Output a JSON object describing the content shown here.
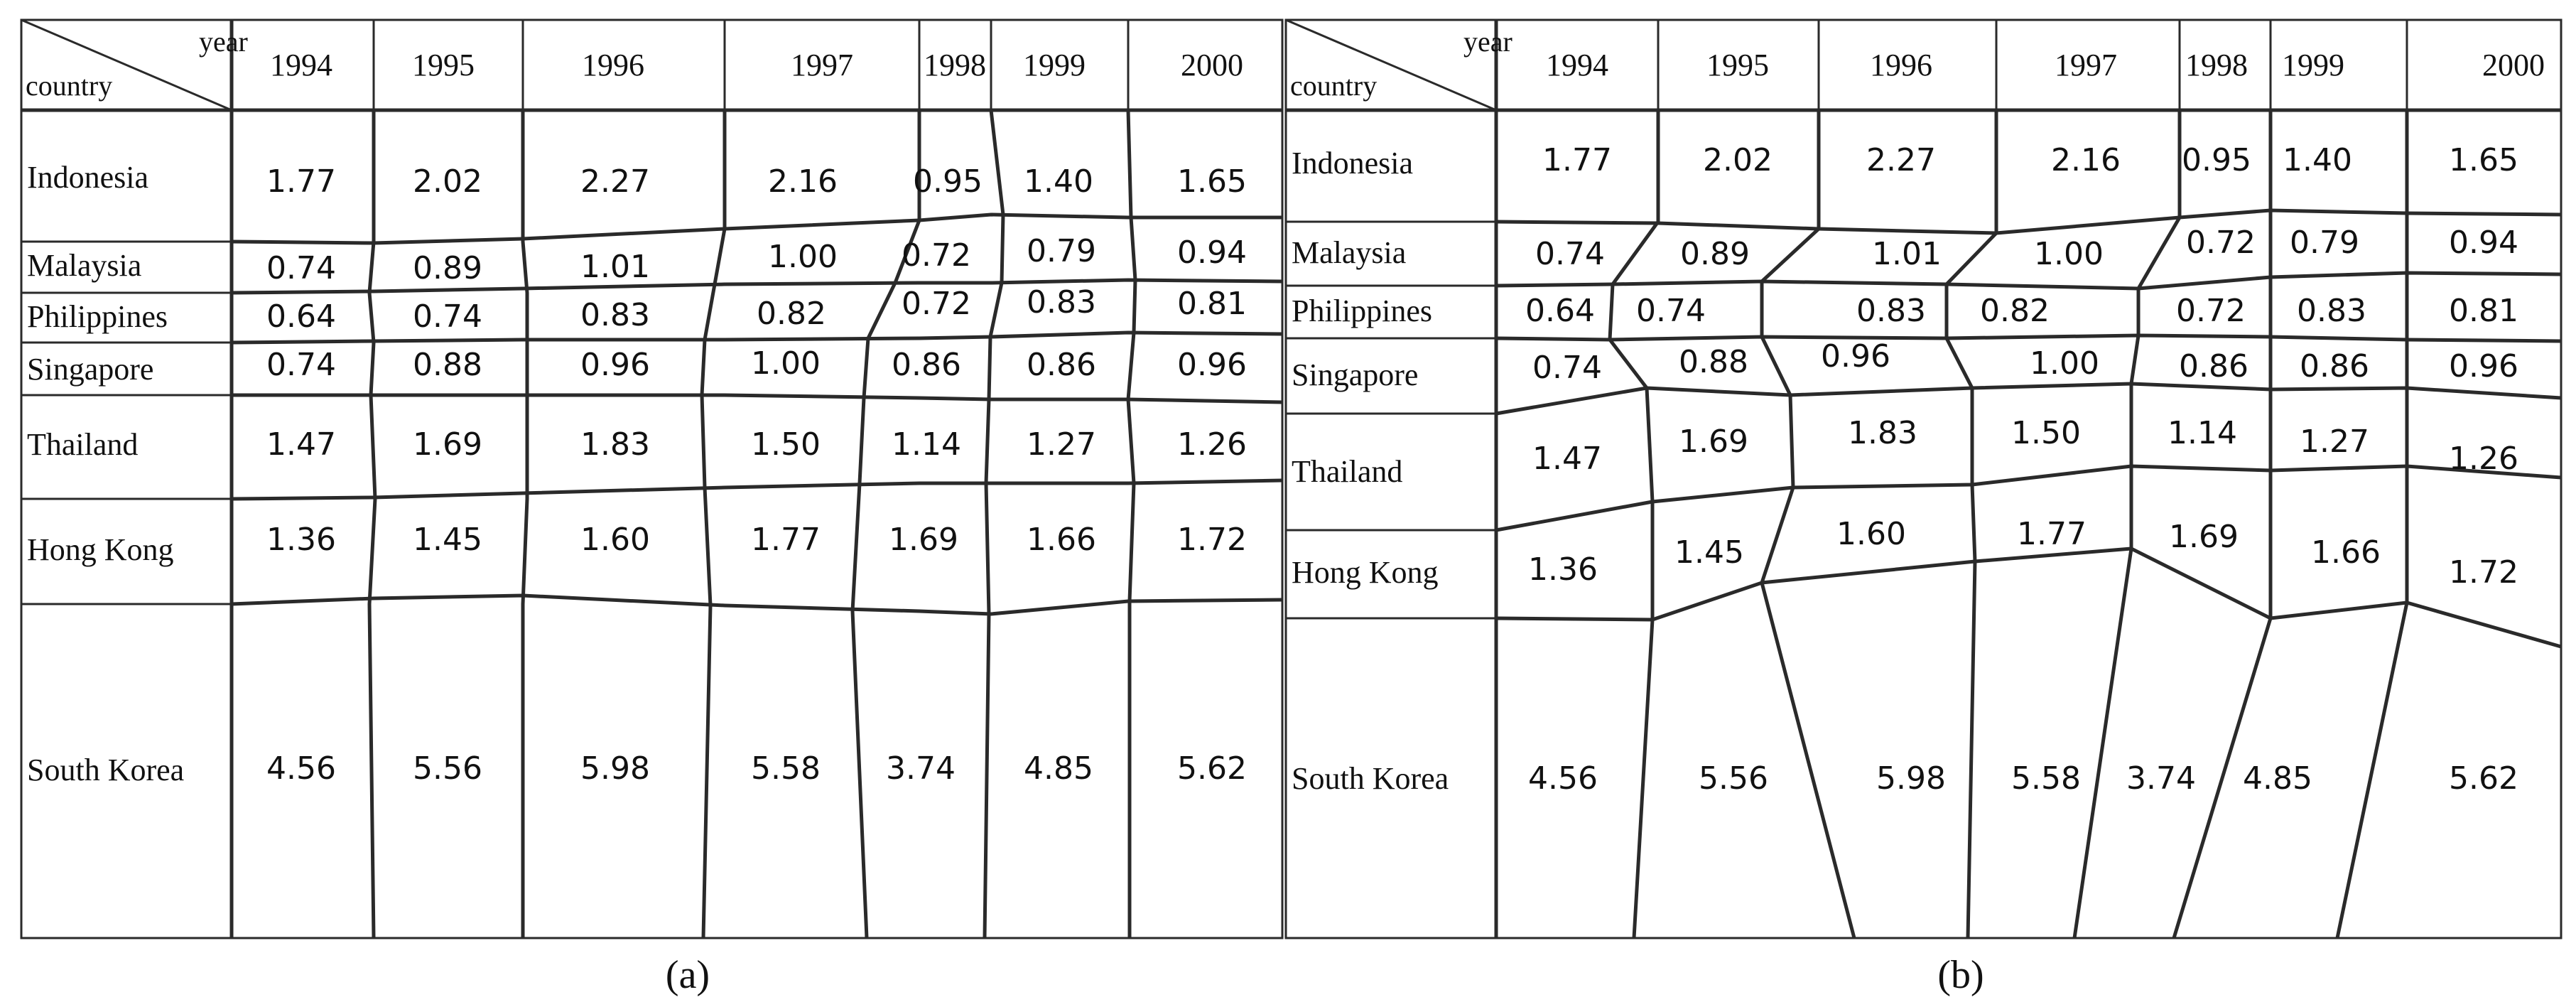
{
  "corner": {
    "top": "year",
    "bottom": "country"
  },
  "years": [
    "1994",
    "1995",
    "1996",
    "1997",
    "1998",
    "1999",
    "2000"
  ],
  "countries": [
    "Indonesia",
    "Malaysia",
    "Philippines",
    "Singapore",
    "Thailand",
    "Hong Kong",
    "South Korea"
  ],
  "values": [
    [
      "1.77",
      "2.02",
      "2.27",
      "2.16",
      "0.95",
      "1.40",
      "1.65"
    ],
    [
      "0.74",
      "0.89",
      "1.01",
      "1.00",
      "0.72",
      "0.79",
      "0.94"
    ],
    [
      "0.64",
      "0.74",
      "0.83",
      "0.82",
      "0.72",
      "0.83",
      "0.81"
    ],
    [
      "0.74",
      "0.88",
      "0.96",
      "1.00",
      "0.86",
      "0.86",
      "0.96"
    ],
    [
      "1.47",
      "1.69",
      "1.83",
      "1.50",
      "1.14",
      "1.27",
      "1.26"
    ],
    [
      "1.36",
      "1.45",
      "1.60",
      "1.77",
      "1.69",
      "1.66",
      "1.72"
    ],
    [
      "4.56",
      "5.56",
      "5.98",
      "5.58",
      "3.74",
      "4.85",
      "5.62"
    ]
  ],
  "panels": [
    {
      "label": "(a)"
    },
    {
      "label": "(b)"
    }
  ]
}
